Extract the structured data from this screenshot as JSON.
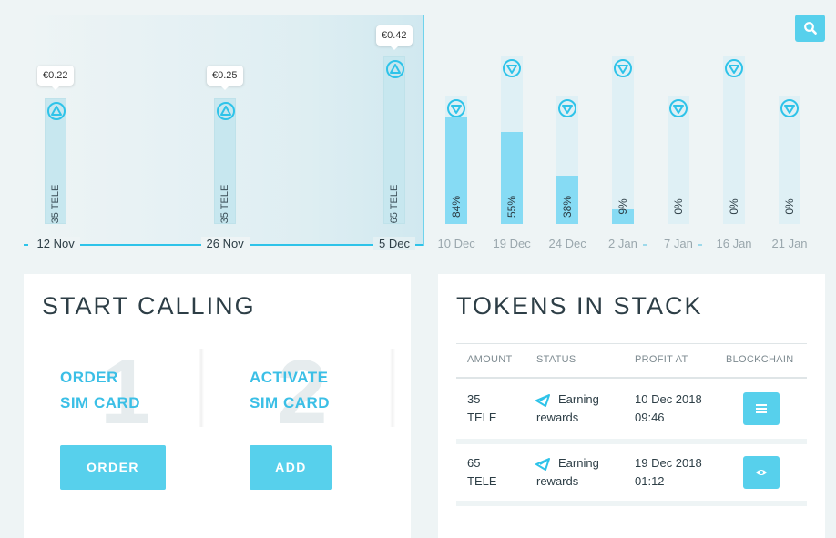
{
  "chart_data": {
    "type": "bar",
    "categories": [
      "12 Nov",
      "26 Nov",
      "5 Dec",
      "10 Dec",
      "19 Dec",
      "24 Dec",
      "2 Jan",
      "7 Jan",
      "16 Jan",
      "21 Jan"
    ],
    "current_index": 2,
    "past_bars": [
      {
        "date": "12 Nov",
        "label": "35 TELE",
        "tooltip": "€0.22",
        "icon": "up-triangle-icon"
      },
      {
        "date": "26 Nov",
        "label": "35 TELE",
        "tooltip": "€0.25",
        "icon": "up-triangle-icon"
      },
      {
        "date": "5 Dec",
        "label": "65 TELE",
        "tooltip": "€0.42",
        "icon": "up-triangle-icon"
      }
    ],
    "future_bars": [
      {
        "date": "10 Dec",
        "percent": 84,
        "label": "84%",
        "icon": "down-triangle-icon"
      },
      {
        "date": "19 Dec",
        "percent": 55,
        "label": "55%",
        "icon": "down-triangle-icon"
      },
      {
        "date": "24 Dec",
        "percent": 38,
        "label": "38%",
        "icon": "down-triangle-icon"
      },
      {
        "date": "2 Jan",
        "percent": 9,
        "label": "9%",
        "icon": "down-triangle-icon"
      },
      {
        "date": "7 Jan",
        "percent": 0,
        "label": "0%",
        "icon": "down-triangle-icon"
      },
      {
        "date": "16 Jan",
        "percent": 0,
        "label": "0%",
        "icon": "down-triangle-icon"
      },
      {
        "date": "21 Jan",
        "percent": 0,
        "label": "0%",
        "icon": "down-triangle-icon"
      }
    ],
    "colors": {
      "accent": "#57d0ec",
      "axis": "#2ec3e9",
      "fill": "#86dbf4",
      "track": "#dff0f5",
      "past_track": "#c7e7ef"
    },
    "zoom_icon": "search-icon"
  },
  "start_calling": {
    "title": "START CALLING",
    "steps": [
      {
        "number": "1",
        "line1": "ORDER",
        "line2": "SIM CARD",
        "button": "ORDER"
      },
      {
        "number": "2",
        "line1": "ACTIVATE",
        "line2": "SIM CARD",
        "button": "ADD"
      }
    ]
  },
  "tokens": {
    "title": "TOKENS IN STACK",
    "headers": {
      "amount": "AMOUNT",
      "status": "STATUS",
      "profit_at": "PROFIT AT",
      "blockchain": "BLOCKCHAIN"
    },
    "rows": [
      {
        "amount_line1": "35",
        "amount_line2": "TELE",
        "status_line1": "Earning",
        "status_line2": "rewards",
        "date": "10 Dec 2018",
        "time": "09:46",
        "button_icon": "list-icon"
      },
      {
        "amount_line1": "65",
        "amount_line2": "TELE",
        "status_line1": "Earning",
        "status_line2": "rewards",
        "date": "19 Dec 2018",
        "time": "01:12",
        "button_icon": "eye-icon"
      }
    ]
  }
}
